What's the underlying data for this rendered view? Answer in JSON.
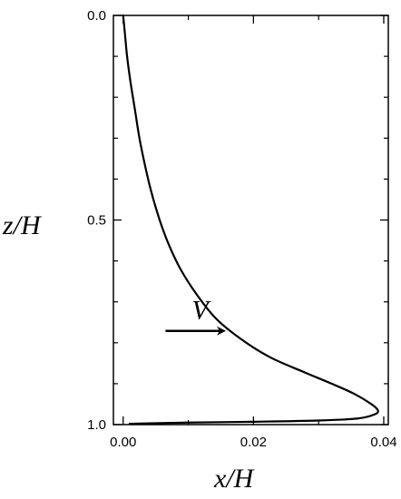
{
  "chart_data": {
    "type": "line",
    "title": "",
    "xlabel": "x/H",
    "ylabel": "z/H",
    "xlim": [
      -0.0015,
      0.0407
    ],
    "ylim": [
      0.0,
      1.0
    ],
    "y_inverted": true,
    "grid": false,
    "legend": "none",
    "xticks": [
      {
        "value": 0.0,
        "label": "0.00"
      },
      {
        "value": 0.02,
        "label": "0.02"
      },
      {
        "value": 0.04,
        "label": "0.04"
      }
    ],
    "x_minor_ticks": [
      0.01,
      0.03
    ],
    "yticks": [
      {
        "value": 0.0,
        "label": "0.0"
      },
      {
        "value": 0.5,
        "label": "0.5"
      },
      {
        "value": 1.0,
        "label": "1.0"
      }
    ],
    "y_minor_ticks": [
      0.1,
      0.2,
      0.3,
      0.4,
      0.6,
      0.7,
      0.8,
      0.9
    ],
    "series": [
      {
        "x": [
          0.0,
          0.0003,
          0.0006,
          0.0011,
          0.0018,
          0.0025,
          0.0034,
          0.0043,
          0.0056,
          0.007,
          0.0088,
          0.0112,
          0.0142,
          0.018,
          0.0225,
          0.0275,
          0.032,
          0.0355,
          0.0381,
          0.0391,
          0.0386,
          0.036,
          0.03,
          0.02,
          0.01,
          0.004,
          0.001
        ],
        "y": [
          0.0,
          0.05,
          0.1,
          0.16,
          0.23,
          0.3,
          0.37,
          0.43,
          0.5,
          0.56,
          0.62,
          0.68,
          0.74,
          0.79,
          0.835,
          0.87,
          0.9,
          0.925,
          0.95,
          0.965,
          0.975,
          0.985,
          0.99,
          0.993,
          0.995,
          0.997,
          0.998
        ],
        "color": "#000000"
      }
    ],
    "annotations": [
      {
        "text": "V",
        "arrow": "right",
        "x_from": 0.0065,
        "x_to": 0.0155,
        "y": 0.771,
        "text_x": 0.0118,
        "text_y": 0.715
      }
    ]
  }
}
